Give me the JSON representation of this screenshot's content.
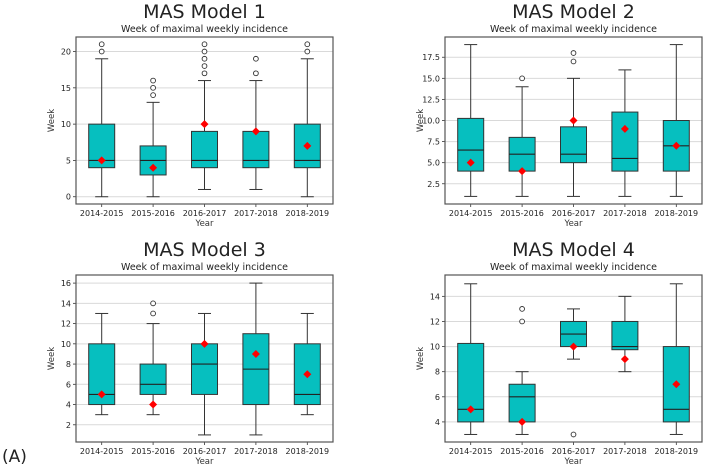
{
  "figure_label": "(A)",
  "colors": {
    "box": "#06bfbf",
    "mean": "#ff0000",
    "grid": "#d9d9d9",
    "frame": "#555555"
  },
  "chart_data": [
    {
      "type": "box",
      "title": "MAS Model 1",
      "subtitle": "Week of maximal weekly incidence",
      "xlabel": "Year",
      "ylabel": "Week",
      "ylim": [
        -1,
        22
      ],
      "yticks": [
        0,
        5,
        10,
        15,
        20
      ],
      "ytick_labels": [
        "0",
        "5",
        "10",
        "15",
        "20"
      ],
      "grid": true,
      "categories": [
        "2014-2015",
        "2015-2016",
        "2016-2017",
        "2017-2018",
        "2018-2019"
      ],
      "boxes": [
        {
          "whislo": 0,
          "q1": 4,
          "med": 5,
          "q3": 10,
          "whishi": 19,
          "fliers": [
            20,
            21
          ],
          "mean": 5
        },
        {
          "whislo": 0,
          "q1": 3,
          "med": 5,
          "q3": 7,
          "whishi": 13,
          "fliers": [
            14,
            15,
            16
          ],
          "mean": 4
        },
        {
          "whislo": 1,
          "q1": 4,
          "med": 5,
          "q3": 9,
          "whishi": 16,
          "fliers": [
            17,
            18,
            19,
            20,
            21
          ],
          "mean": 10
        },
        {
          "whislo": 1,
          "q1": 4,
          "med": 5,
          "q3": 9,
          "whishi": 16,
          "fliers": [
            17,
            19
          ],
          "mean": 9
        },
        {
          "whislo": 0,
          "q1": 4,
          "med": 5,
          "q3": 10,
          "whishi": 19,
          "fliers": [
            20,
            21
          ],
          "mean": 7
        }
      ]
    },
    {
      "type": "box",
      "title": "MAS Model 2",
      "subtitle": "Week of maximal weekly incidence",
      "xlabel": "Year",
      "ylabel": "Week",
      "ylim": [
        0.1,
        19.9
      ],
      "yticks": [
        2.5,
        5,
        7.5,
        10,
        12.5,
        15,
        17.5
      ],
      "ytick_labels": [
        "2.5",
        "5.0",
        "7.5",
        "10.0",
        "12.5",
        "15.0",
        "17.5"
      ],
      "grid": true,
      "categories": [
        "2014-2015",
        "2015-2016",
        "2016-2017",
        "2017-2018",
        "2018-2019"
      ],
      "boxes": [
        {
          "whislo": 1,
          "q1": 4,
          "med": 6.5,
          "q3": 10.25,
          "whishi": 19,
          "fliers": [],
          "mean": 5
        },
        {
          "whislo": 1,
          "q1": 4,
          "med": 6,
          "q3": 8,
          "whishi": 14,
          "fliers": [
            15
          ],
          "mean": 4
        },
        {
          "whislo": 1,
          "q1": 5,
          "med": 6,
          "q3": 9.25,
          "whishi": 15,
          "fliers": [
            17,
            18
          ],
          "mean": 10
        },
        {
          "whislo": 1,
          "q1": 4,
          "med": 5.5,
          "q3": 11,
          "whishi": 16,
          "fliers": [],
          "mean": 9
        },
        {
          "whislo": 1,
          "q1": 4,
          "med": 7,
          "q3": 10,
          "whishi": 19,
          "fliers": [],
          "mean": 7
        }
      ]
    },
    {
      "type": "box",
      "title": "MAS Model 3",
      "subtitle": "Week of maximal weekly incidence",
      "xlabel": "Year",
      "ylabel": "Week",
      "ylim": [
        0.3,
        16.8
      ],
      "yticks": [
        2,
        4,
        6,
        8,
        10,
        12,
        14,
        16
      ],
      "ytick_labels": [
        "2",
        "4",
        "6",
        "8",
        "10",
        "12",
        "14",
        "16"
      ],
      "grid": true,
      "categories": [
        "2014-2015",
        "2015-2016",
        "2016-2017",
        "2017-2018",
        "2018-2019"
      ],
      "boxes": [
        {
          "whislo": 3,
          "q1": 4,
          "med": 5,
          "q3": 10,
          "whishi": 13,
          "fliers": [],
          "mean": 5
        },
        {
          "whislo": 3,
          "q1": 5,
          "med": 6,
          "q3": 8,
          "whishi": 12,
          "fliers": [
            13,
            14
          ],
          "mean": 4
        },
        {
          "whislo": 1,
          "q1": 5,
          "med": 8,
          "q3": 10,
          "whishi": 13,
          "fliers": [],
          "mean": 10
        },
        {
          "whislo": 1,
          "q1": 4,
          "med": 7.5,
          "q3": 11,
          "whishi": 16,
          "fliers": [],
          "mean": 9
        },
        {
          "whislo": 3,
          "q1": 4,
          "med": 5,
          "q3": 10,
          "whishi": 13,
          "fliers": [],
          "mean": 7
        }
      ]
    },
    {
      "type": "box",
      "title": "MAS Model 4",
      "subtitle": "Week of maximal weekly incidence",
      "xlabel": "Year",
      "ylabel": "Week",
      "ylim": [
        2.4,
        15.7
      ],
      "yticks": [
        4,
        6,
        8,
        10,
        12,
        14
      ],
      "ytick_labels": [
        "4",
        "6",
        "8",
        "10",
        "12",
        "14"
      ],
      "grid": true,
      "categories": [
        "2014-2015",
        "2015-2016",
        "2016-2017",
        "2017-2018",
        "2018-2019"
      ],
      "boxes": [
        {
          "whislo": 3,
          "q1": 4,
          "med": 5,
          "q3": 10.25,
          "whishi": 15,
          "fliers": [],
          "mean": 5
        },
        {
          "whislo": 3,
          "q1": 4,
          "med": 6,
          "q3": 7,
          "whishi": 8,
          "fliers": [
            12,
            13
          ],
          "mean": 4
        },
        {
          "whislo": 9,
          "q1": 10,
          "med": 11,
          "q3": 12,
          "whishi": 13,
          "fliers": [
            3
          ],
          "mean": 10
        },
        {
          "whislo": 8,
          "q1": 9.75,
          "med": 10,
          "q3": 12,
          "whishi": 14,
          "fliers": [],
          "mean": 9
        },
        {
          "whislo": 3,
          "q1": 4,
          "med": 5,
          "q3": 10,
          "whishi": 15,
          "fliers": [],
          "mean": 7
        }
      ]
    }
  ]
}
